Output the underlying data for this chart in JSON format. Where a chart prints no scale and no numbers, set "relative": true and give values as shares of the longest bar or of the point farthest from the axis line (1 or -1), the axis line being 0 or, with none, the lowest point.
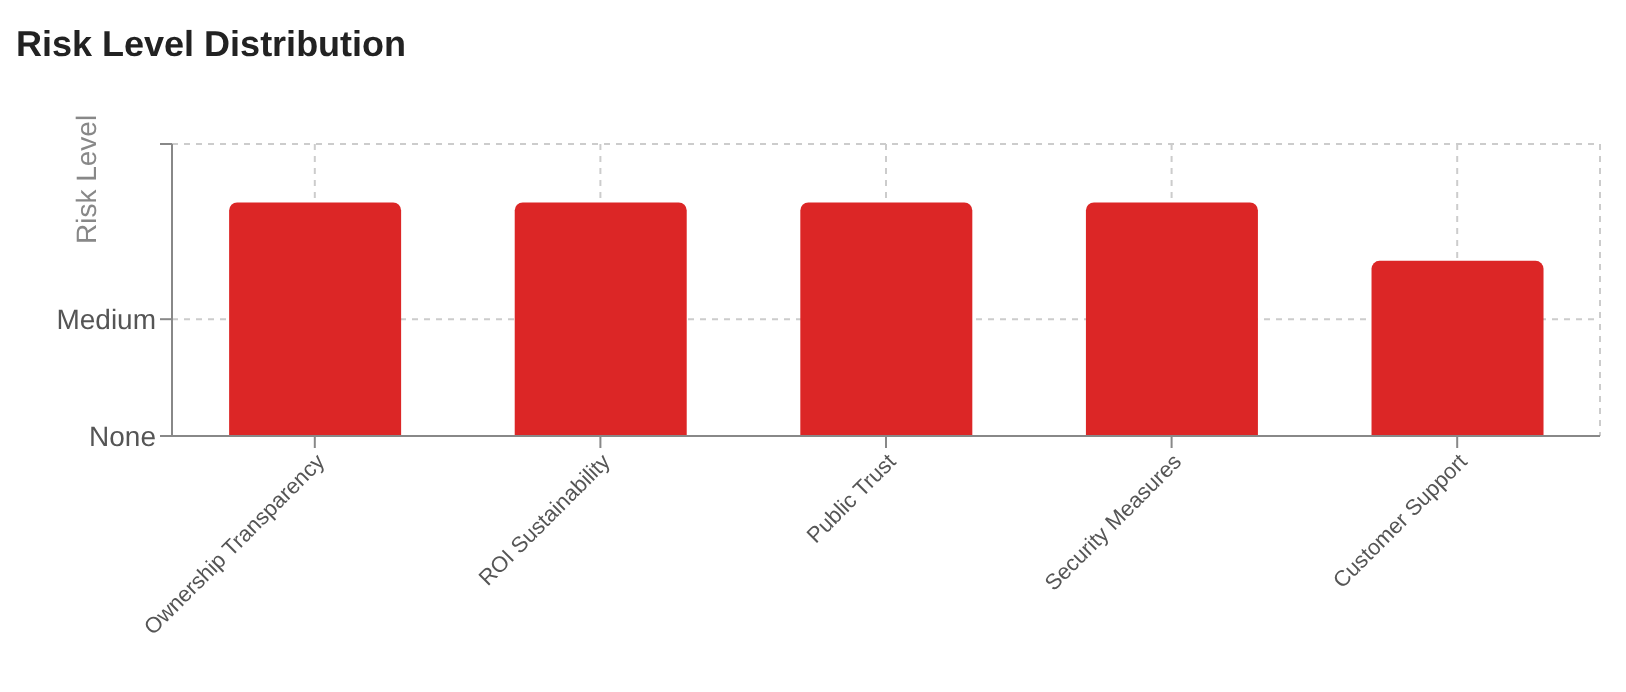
{
  "chart_data": {
    "type": "bar",
    "title": "Risk Level Distribution",
    "ylabel": "Risk Level",
    "categories": [
      "Ownership Transparency",
      "ROI Sustainability",
      "Public Trust",
      "Security Measures",
      "Customer Support"
    ],
    "values": [
      1,
      1,
      1,
      1,
      0.75
    ],
    "color": "#dc2626",
    "relative": true,
    "annotations": [
      "None",
      "Medium"
    ],
    "grid": true
  }
}
